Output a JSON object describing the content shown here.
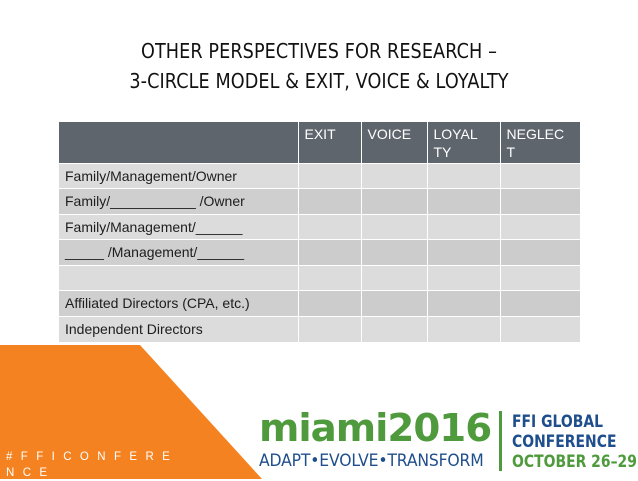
{
  "slide": {
    "title_line1": "OTHER PERSPECTIVES FOR RESEARCH –",
    "title_line2": "3-CIRCLE MODEL & EXIT, VOICE & LOYALTY"
  },
  "table": {
    "headers": [
      "",
      "EXIT",
      "VOICE",
      "LOYAL\nTY",
      "NEGLEC\nT"
    ],
    "rows": [
      "Family/Management/Owner",
      "Family/___________ /Owner",
      "Family/Management/______",
      "_____ /Management/______",
      "",
      "Affiliated Directors (CPA, etc.)",
      "Independent Directors"
    ]
  },
  "footer": {
    "hashtag": "# F F I C O N F E R E N C E",
    "logo_main": "miami2016",
    "logo_tagline": "ADAPT•EVOLVE•TRANSFORM",
    "event_line1": "FFI GLOBAL",
    "event_line2": "CONFERENCE",
    "event_line3": "OCTOBER 26–29"
  },
  "colors": {
    "header_bg": "#5f656c",
    "cell_bg": "#dcdcdc",
    "accent_orange": "#f58220",
    "logo_green": "#4e9a3c",
    "logo_blue": "#1f4e8c"
  }
}
